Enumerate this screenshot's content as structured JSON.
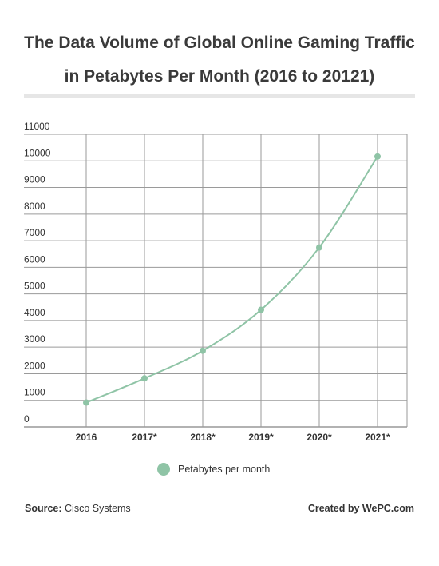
{
  "header": {
    "title_line1": "The Data Volume of Global Online Gaming Traffic",
    "title_line2": "in Petabytes Per Month (2016 to 20121)"
  },
  "footer": {
    "source_label": "Source:",
    "source_value": "Cisco Systems",
    "credit": "Created by WePC.com"
  },
  "chart_data": {
    "type": "line",
    "categories": [
      "2016",
      "2017*",
      "2018*",
      "2019*",
      "2020*",
      "2021*"
    ],
    "series": [
      {
        "name": "Petabytes per month",
        "values": [
          915,
          1825,
          2864,
          4402,
          6745,
          10163
        ],
        "color": "#8fc4a6"
      }
    ],
    "yticks": [
      0,
      1000,
      2000,
      3000,
      4000,
      5000,
      6000,
      7000,
      8000,
      9000,
      10000,
      11000
    ],
    "ylim": [
      0,
      11000
    ],
    "grid": true,
    "legend_position": "bottom-center"
  }
}
